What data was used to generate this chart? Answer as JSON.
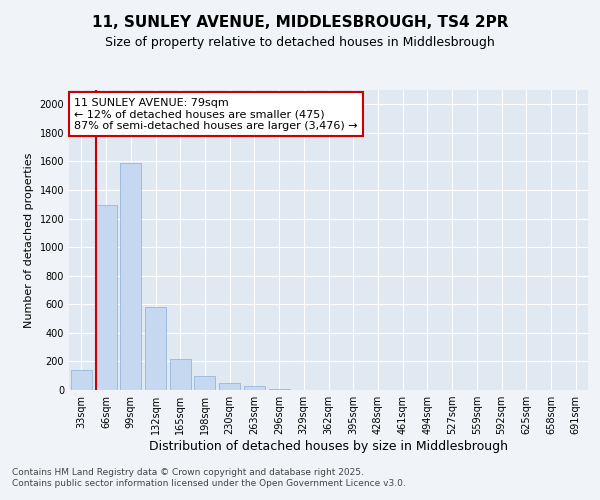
{
  "title1": "11, SUNLEY AVENUE, MIDDLESBROUGH, TS4 2PR",
  "title2": "Size of property relative to detached houses in Middlesbrough",
  "xlabel": "Distribution of detached houses by size in Middlesbrough",
  "ylabel": "Number of detached properties",
  "categories": [
    "33sqm",
    "66sqm",
    "99sqm",
    "132sqm",
    "165sqm",
    "198sqm",
    "230sqm",
    "263sqm",
    "296sqm",
    "329sqm",
    "362sqm",
    "395sqm",
    "428sqm",
    "461sqm",
    "494sqm",
    "527sqm",
    "559sqm",
    "592sqm",
    "625sqm",
    "658sqm",
    "691sqm"
  ],
  "values": [
    140,
    1295,
    1590,
    580,
    215,
    100,
    50,
    25,
    10,
    2,
    2,
    0,
    0,
    0,
    0,
    0,
    0,
    0,
    0,
    0,
    0
  ],
  "bar_color": "#c5d8f0",
  "bar_edge_color": "#8ab0d8",
  "vline_color": "#cc0000",
  "vline_x_bar_index": 1,
  "annotation_text": "11 SUNLEY AVENUE: 79sqm\n← 12% of detached houses are smaller (475)\n87% of semi-detached houses are larger (3,476) →",
  "box_edge_color": "#cc0000",
  "ylim": [
    0,
    2100
  ],
  "yticks": [
    0,
    200,
    400,
    600,
    800,
    1000,
    1200,
    1400,
    1600,
    1800,
    2000
  ],
  "fig_bg_color": "#f0f4f8",
  "plot_bg_color": "#e0e8f2",
  "footer": "Contains HM Land Registry data © Crown copyright and database right 2025.\nContains public sector information licensed under the Open Government Licence v3.0.",
  "title1_fontsize": 11,
  "title2_fontsize": 9,
  "xlabel_fontsize": 9,
  "ylabel_fontsize": 8,
  "tick_fontsize": 7,
  "annotation_fontsize": 8,
  "footer_fontsize": 6.5
}
